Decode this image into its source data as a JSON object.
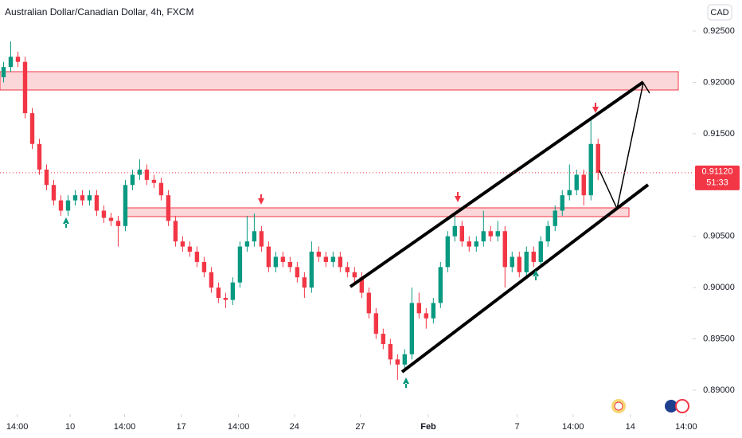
{
  "chart_data": {
    "type": "candlestick",
    "title": "Australian Dollar/Canadian Dollar, 4h, FXCM",
    "currency": "CAD",
    "up_color": "#089981",
    "down_color": "#f23645",
    "open": [
      0.9205,
      0.9215,
      0.9225,
      0.922,
      0.917,
      0.914,
      0.9115,
      0.91,
      0.9085,
      0.9075,
      0.9085,
      0.909,
      0.9085,
      0.909,
      0.9075,
      0.9068,
      0.9065,
      0.906,
      0.91,
      0.911,
      0.9115,
      0.9105,
      0.9102,
      0.909,
      0.9065,
      0.9045,
      0.904,
      0.9035,
      0.9025,
      0.9015,
      0.9,
      0.899,
      0.8988,
      0.9005,
      0.904,
      0.9045,
      0.9055,
      0.904,
      0.902,
      0.903,
      0.9025,
      0.902,
      0.901,
      0.9,
      0.9035,
      0.903,
      0.9025,
      0.903,
      0.902,
      0.9015,
      0.901,
      0.8995,
      0.8975,
      0.8955,
      0.8945,
      0.893,
      0.8925,
      0.8935,
      0.8985,
      0.8975,
      0.897,
      0.8985,
      0.902,
      0.905,
      0.906,
      0.9045,
      0.904,
      0.9045,
      0.9055,
      0.905,
      0.9055,
      0.902,
      0.903,
      0.9015,
      0.9035,
      0.9025,
      0.9045,
      0.906,
      0.9075,
      0.909,
      0.9095,
      0.911,
      0.909,
      0.914
    ],
    "high": [
      0.922,
      0.924,
      0.923,
      0.9225,
      0.9175,
      0.9145,
      0.912,
      0.9105,
      0.909,
      0.909,
      0.9095,
      0.9095,
      0.9095,
      0.9095,
      0.908,
      0.9073,
      0.907,
      0.9105,
      0.9115,
      0.9125,
      0.912,
      0.911,
      0.9107,
      0.9095,
      0.907,
      0.905,
      0.9045,
      0.904,
      0.903,
      0.902,
      0.9005,
      0.8995,
      0.901,
      0.9045,
      0.907,
      0.9072,
      0.906,
      0.9045,
      0.9035,
      0.9035,
      0.903,
      0.9025,
      0.9015,
      0.9045,
      0.904,
      0.9035,
      0.9035,
      0.9035,
      0.9025,
      0.902,
      0.9015,
      0.9,
      0.898,
      0.896,
      0.895,
      0.8935,
      0.894,
      0.9,
      0.8995,
      0.898,
      0.899,
      0.9025,
      0.9055,
      0.907,
      0.9065,
      0.905,
      0.905,
      0.9075,
      0.906,
      0.9065,
      0.906,
      0.9035,
      0.9035,
      0.904,
      0.904,
      0.905,
      0.9065,
      0.908,
      0.9095,
      0.912,
      0.9115,
      0.9115,
      0.9165,
      0.9145
    ],
    "low": [
      0.92,
      0.921,
      0.9215,
      0.9165,
      0.9135,
      0.911,
      0.9095,
      0.908,
      0.907,
      0.907,
      0.908,
      0.908,
      0.908,
      0.907,
      0.9063,
      0.906,
      0.904,
      0.9055,
      0.9095,
      0.9105,
      0.91,
      0.9097,
      0.9085,
      0.906,
      0.904,
      0.9035,
      0.903,
      0.902,
      0.901,
      0.8995,
      0.8985,
      0.898,
      0.8983,
      0.9,
      0.9035,
      0.904,
      0.9035,
      0.9015,
      0.9015,
      0.902,
      0.9015,
      0.9005,
      0.899,
      0.8995,
      0.9025,
      0.902,
      0.902,
      0.9015,
      0.901,
      0.9005,
      0.899,
      0.897,
      0.895,
      0.894,
      0.8925,
      0.891,
      0.892,
      0.893,
      0.897,
      0.896,
      0.8965,
      0.898,
      0.9015,
      0.9045,
      0.904,
      0.9035,
      0.9035,
      0.904,
      0.9045,
      0.9045,
      0.9,
      0.9015,
      0.901,
      0.901,
      0.902,
      0.902,
      0.904,
      0.9055,
      0.907,
      0.9085,
      0.909,
      0.908,
      0.9085,
      0.9105
    ],
    "close": [
      0.9215,
      0.9225,
      0.922,
      0.917,
      0.914,
      0.9115,
      0.91,
      0.9085,
      0.9075,
      0.9085,
      0.909,
      0.9085,
      0.909,
      0.9075,
      0.9068,
      0.9065,
      0.906,
      0.91,
      0.911,
      0.9115,
      0.9105,
      0.9102,
      0.909,
      0.9065,
      0.9045,
      0.904,
      0.9035,
      0.9025,
      0.9015,
      0.9,
      0.899,
      0.8988,
      0.9005,
      0.904,
      0.9045,
      0.9055,
      0.904,
      0.902,
      0.903,
      0.9025,
      0.902,
      0.901,
      0.9,
      0.9035,
      0.903,
      0.9025,
      0.903,
      0.902,
      0.9015,
      0.901,
      0.8995,
      0.8975,
      0.8955,
      0.8945,
      0.893,
      0.8925,
      0.8935,
      0.8985,
      0.8975,
      0.897,
      0.8985,
      0.902,
      0.905,
      0.906,
      0.9045,
      0.904,
      0.9045,
      0.9055,
      0.905,
      0.9055,
      0.902,
      0.903,
      0.9015,
      0.9035,
      0.9025,
      0.9045,
      0.906,
      0.9075,
      0.909,
      0.9095,
      0.911,
      0.909,
      0.914,
      0.9112
    ],
    "xlim": [
      -0.5,
      96.2
    ],
    "xticks": [
      {
        "value": 1.9,
        "label": "14:00"
      },
      {
        "value": 9.3,
        "label": "10"
      },
      {
        "value": 16.9,
        "label": "14:00"
      },
      {
        "value": 24.8,
        "label": "17"
      },
      {
        "value": 32.8,
        "label": "14:00"
      },
      {
        "value": 40.6,
        "label": "24"
      },
      {
        "value": 49.8,
        "label": "27"
      },
      {
        "value": 59.3,
        "label": "Feb"
      },
      {
        "value": 71.7,
        "label": "7"
      },
      {
        "value": 79.5,
        "label": "14:00"
      },
      {
        "value": 87.5,
        "label": "14"
      },
      {
        "value": 95.3,
        "label": "14:00"
      }
    ],
    "ylim": [
      0.88767,
      0.92803
    ],
    "yticks": [
      {
        "value": 0.925,
        "label": "0.92500"
      },
      {
        "value": 0.92,
        "label": "0.92000"
      },
      {
        "value": 0.915,
        "label": "0.91500"
      },
      {
        "value": 0.91,
        "label": "0.91000"
      },
      {
        "value": 0.905,
        "label": "0.90500"
      },
      {
        "value": 0.9,
        "label": "0.90000"
      },
      {
        "value": 0.895,
        "label": "0.89500"
      },
      {
        "value": 0.89,
        "label": "0.89000"
      }
    ],
    "last_price": {
      "value": 0.9112,
      "label": "0.91120"
    },
    "countdown": "51:33"
  }
}
